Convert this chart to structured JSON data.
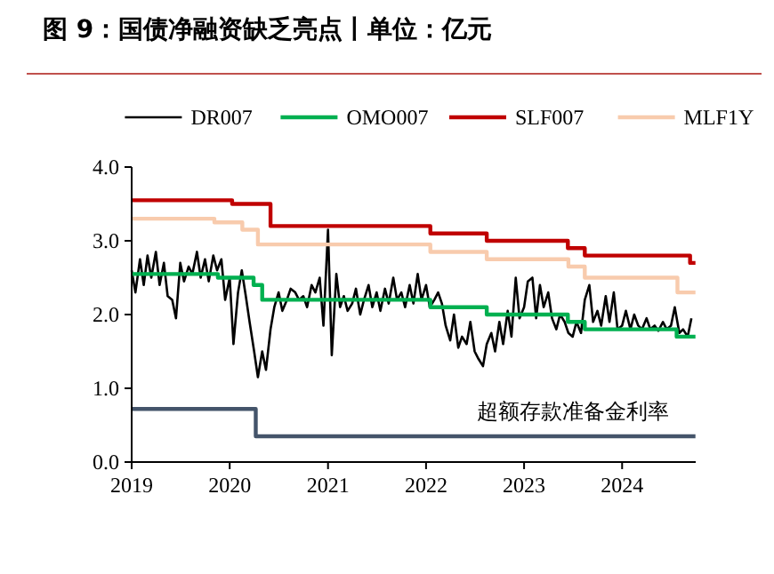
{
  "chart_data": {
    "type": "line",
    "title": "图 9：国债净融资缺乏亮点丨单位：亿元",
    "legend": "top",
    "grid": false,
    "xlim": [
      "2019-01-01",
      "2024-10-01"
    ],
    "xticks": [
      "2019",
      "2020",
      "2021",
      "2022",
      "2023",
      "2024"
    ],
    "ylim": [
      0,
      4
    ],
    "yticks": [
      {
        "value": 0,
        "label": "0.0"
      },
      {
        "value": 1,
        "label": "1.0"
      },
      {
        "value": 2,
        "label": "2.0"
      },
      {
        "value": 3,
        "label": "3.0"
      },
      {
        "value": 4,
        "label": "4.0"
      }
    ],
    "annotations": [
      {
        "text": "超额存款准备金利率",
        "x": "2023-07-01",
        "y": 0.35
      }
    ],
    "series": [
      {
        "name": "DR007",
        "color": "#000000",
        "type": "line",
        "x": [
          "2019-01-01",
          "2019-01-15",
          "2019-02-01",
          "2019-02-15",
          "2019-03-01",
          "2019-03-15",
          "2019-04-01",
          "2019-04-15",
          "2019-05-01",
          "2019-05-15",
          "2019-06-01",
          "2019-06-15",
          "2019-07-01",
          "2019-07-15",
          "2019-08-01",
          "2019-08-15",
          "2019-09-01",
          "2019-09-15",
          "2019-10-01",
          "2019-10-15",
          "2019-11-01",
          "2019-11-15",
          "2019-12-01",
          "2019-12-15",
          "2020-01-01",
          "2020-01-15",
          "2020-02-01",
          "2020-02-15",
          "2020-03-01",
          "2020-03-15",
          "2020-04-01",
          "2020-04-15",
          "2020-05-01",
          "2020-05-15",
          "2020-06-01",
          "2020-06-15",
          "2020-07-01",
          "2020-07-15",
          "2020-08-01",
          "2020-08-15",
          "2020-09-01",
          "2020-09-15",
          "2020-10-01",
          "2020-10-15",
          "2020-11-01",
          "2020-11-15",
          "2020-12-01",
          "2020-12-15",
          "2021-01-01",
          "2021-01-15",
          "2021-02-01",
          "2021-02-15",
          "2021-03-01",
          "2021-03-15",
          "2021-04-01",
          "2021-04-15",
          "2021-05-01",
          "2021-05-15",
          "2021-06-01",
          "2021-06-15",
          "2021-07-01",
          "2021-07-15",
          "2021-08-01",
          "2021-08-15",
          "2021-09-01",
          "2021-09-15",
          "2021-10-01",
          "2021-10-15",
          "2021-11-01",
          "2021-11-15",
          "2021-12-01",
          "2021-12-15",
          "2022-01-01",
          "2022-01-15",
          "2022-02-01",
          "2022-02-15",
          "2022-03-01",
          "2022-03-15",
          "2022-04-01",
          "2022-04-15",
          "2022-05-01",
          "2022-05-15",
          "2022-06-01",
          "2022-06-15",
          "2022-07-01",
          "2022-07-15",
          "2022-08-01",
          "2022-08-15",
          "2022-09-01",
          "2022-09-15",
          "2022-10-01",
          "2022-10-15",
          "2022-11-01",
          "2022-11-15",
          "2022-12-01",
          "2022-12-15",
          "2023-01-01",
          "2023-01-15",
          "2023-02-01",
          "2023-02-15",
          "2023-03-01",
          "2023-03-15",
          "2023-04-01",
          "2023-04-15",
          "2023-05-01",
          "2023-05-15",
          "2023-06-01",
          "2023-06-15",
          "2023-07-01",
          "2023-07-15",
          "2023-08-01",
          "2023-08-15",
          "2023-09-01",
          "2023-09-15",
          "2023-10-01",
          "2023-10-15",
          "2023-11-01",
          "2023-11-15",
          "2023-12-01",
          "2023-12-15",
          "2024-01-01",
          "2024-01-15",
          "2024-02-01",
          "2024-02-15",
          "2024-03-01",
          "2024-03-15",
          "2024-04-01",
          "2024-04-15",
          "2024-05-01",
          "2024-05-15",
          "2024-06-01",
          "2024-06-15",
          "2024-07-01",
          "2024-07-15",
          "2024-08-01",
          "2024-08-15",
          "2024-09-01",
          "2024-09-15"
        ],
        "values": [
          2.6,
          2.3,
          2.75,
          2.4,
          2.8,
          2.5,
          2.85,
          2.4,
          2.7,
          2.25,
          2.2,
          1.95,
          2.7,
          2.45,
          2.65,
          2.55,
          2.85,
          2.5,
          2.75,
          2.45,
          2.8,
          2.6,
          2.75,
          2.2,
          2.5,
          1.6,
          2.3,
          2.6,
          2.25,
          1.9,
          1.5,
          1.15,
          1.5,
          1.25,
          1.8,
          2.1,
          2.3,
          2.05,
          2.2,
          2.35,
          2.3,
          2.2,
          2.25,
          2.1,
          2.4,
          2.3,
          2.5,
          1.85,
          3.15,
          1.45,
          2.55,
          2.1,
          2.25,
          2.05,
          2.15,
          2.35,
          2.0,
          2.2,
          2.4,
          2.1,
          2.3,
          2.05,
          2.35,
          2.15,
          2.5,
          2.2,
          2.3,
          2.1,
          2.4,
          2.15,
          2.55,
          2.2,
          2.4,
          2.1,
          2.2,
          2.3,
          2.15,
          1.85,
          1.65,
          2.0,
          1.55,
          1.7,
          1.6,
          1.9,
          1.5,
          1.4,
          1.3,
          1.6,
          1.75,
          1.5,
          1.9,
          1.6,
          2.05,
          1.7,
          2.5,
          1.95,
          2.1,
          2.45,
          2.5,
          1.95,
          2.4,
          2.1,
          2.3,
          1.95,
          1.8,
          2.0,
          1.9,
          1.75,
          1.7,
          1.9,
          1.75,
          2.2,
          2.4,
          1.9,
          2.05,
          1.85,
          2.25,
          1.9,
          2.3,
          1.8,
          1.85,
          2.05,
          1.8,
          2.0,
          1.85,
          1.8,
          1.95,
          1.8,
          1.85,
          1.78,
          1.9,
          1.8,
          1.85,
          2.1,
          1.75,
          1.8,
          1.7,
          1.95
        ]
      },
      {
        "name": "OMO007",
        "color": "#00b050",
        "type": "step",
        "x": [
          "2019-01-01",
          "2019-11-18",
          "2020-03-30",
          "2020-05-01",
          "2022-01-17",
          "2022-08-15",
          "2023-06-13",
          "2023-08-15",
          "2024-07-22",
          "2024-09-30"
        ],
        "values": [
          2.55,
          2.5,
          2.4,
          2.2,
          2.1,
          2.0,
          1.9,
          1.8,
          1.7,
          1.7
        ]
      },
      {
        "name": "SLF007",
        "color": "#c00000",
        "type": "step",
        "x": [
          "2019-01-01",
          "2020-01-10",
          "2020-06-01",
          "2022-01-17",
          "2022-08-15",
          "2023-06-13",
          "2023-08-15",
          "2024-09-10",
          "2024-09-30"
        ],
        "values": [
          3.55,
          3.5,
          3.2,
          3.1,
          3.0,
          2.9,
          2.8,
          2.7,
          2.7
        ]
      },
      {
        "name": "MLF1Y",
        "color": "#f8cbad",
        "type": "step",
        "x": [
          "2019-01-01",
          "2019-11-05",
          "2020-02-17",
          "2020-04-15",
          "2022-01-17",
          "2022-08-15",
          "2023-06-15",
          "2023-08-15",
          "2024-07-25",
          "2024-09-30"
        ],
        "values": [
          3.3,
          3.25,
          3.15,
          2.95,
          2.85,
          2.75,
          2.65,
          2.5,
          2.3,
          2.3
        ]
      },
      {
        "color": "#44546a",
        "type": "step",
        "x": [
          "2019-01-01",
          "2020-04-07",
          "2024-09-30"
        ],
        "values": [
          0.72,
          0.35,
          0.35
        ]
      }
    ]
  }
}
